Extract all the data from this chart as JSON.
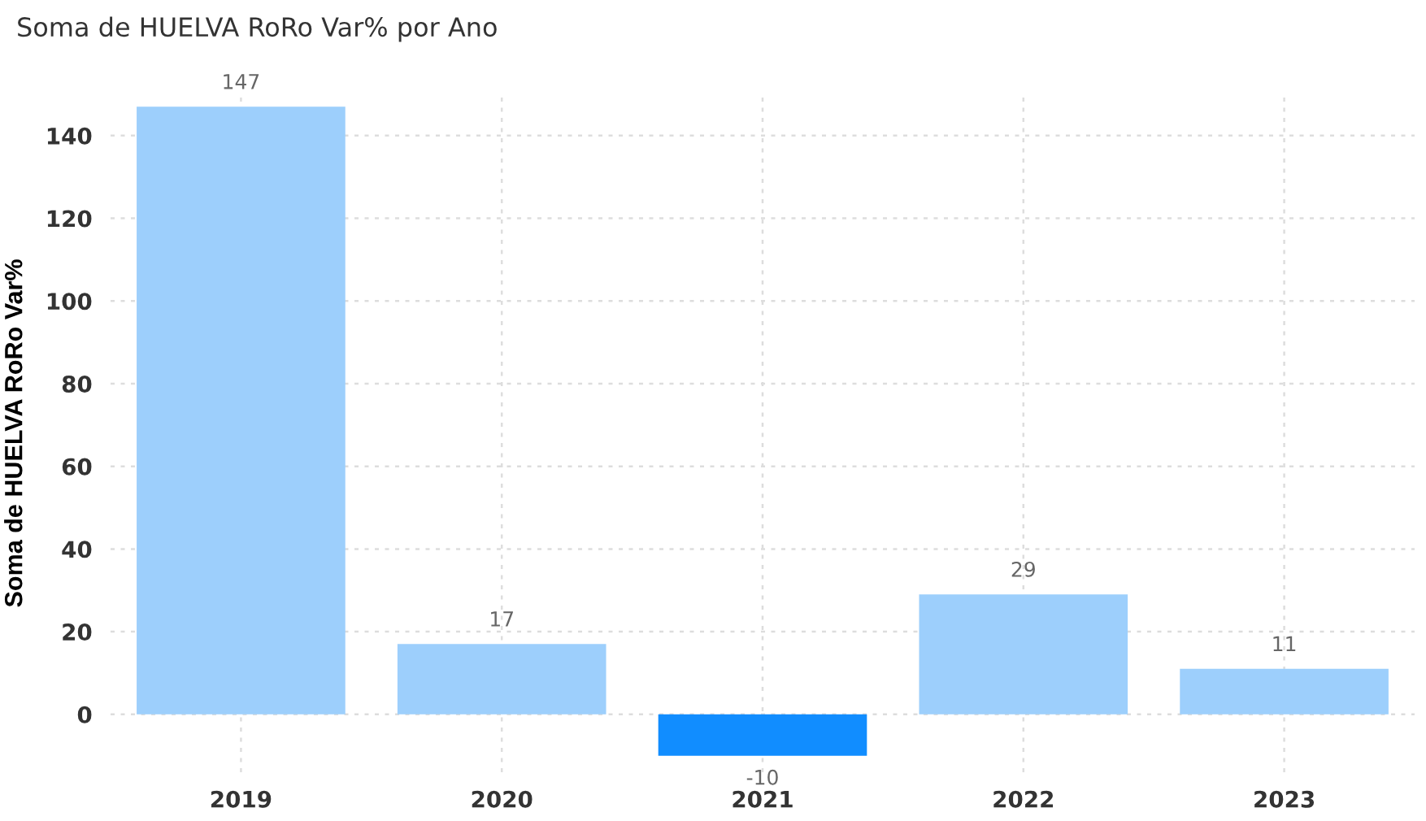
{
  "chart_data": {
    "type": "bar",
    "title": "Soma de HUELVA RoRo Var% por Ano",
    "ylabel": "Soma de HUELVA RoRo Var%",
    "categories": [
      "2019",
      "2020",
      "2021",
      "2022",
      "2023"
    ],
    "values": [
      147,
      17,
      -10,
      29,
      11
    ],
    "colors": [
      "#9dcffc",
      "#9dcffc",
      "#118dff",
      "#9dcffc",
      "#9dcffc"
    ],
    "ylim": [
      -14,
      150
    ],
    "yticks": [
      0,
      20,
      40,
      60,
      80,
      100,
      120,
      140
    ],
    "grid": true,
    "data_labels": true
  }
}
